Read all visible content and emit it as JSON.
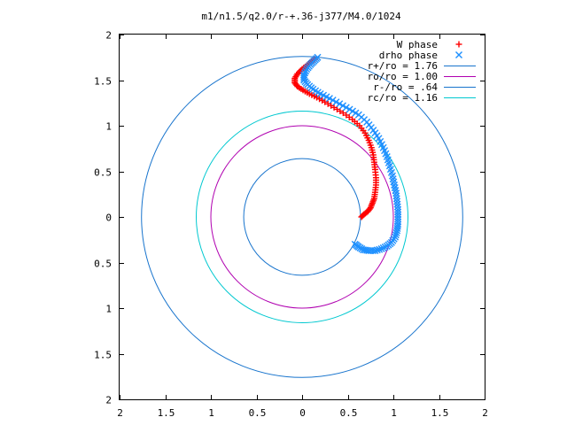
{
  "chart_data": {
    "type": "scatter",
    "title": "m1/n1.5/q2.0/r-+.36-j377/M4.0/1024",
    "xlim": [
      -2,
      2
    ],
    "ylim": [
      -2,
      2
    ],
    "x_ticks": [
      "2",
      "1.5",
      "1",
      "0.5",
      "0",
      "0.5",
      "1",
      "1.5",
      "2"
    ],
    "y_ticks": [
      "2",
      "1.5",
      "1",
      "0.5",
      "0",
      "0.5",
      "1",
      "1.5",
      "2"
    ],
    "grid": false,
    "legend_position": "top-right",
    "series": [
      {
        "name": "W phase",
        "marker": "+",
        "color": "#ff0000",
        "points": [
          [
            0.65,
            0.0
          ],
          [
            0.68,
            0.03
          ],
          [
            0.72,
            0.06
          ],
          [
            0.75,
            0.1
          ],
          [
            0.77,
            0.15
          ],
          [
            0.79,
            0.2
          ],
          [
            0.8,
            0.27
          ],
          [
            0.81,
            0.35
          ],
          [
            0.81,
            0.43
          ],
          [
            0.8,
            0.52
          ],
          [
            0.79,
            0.6
          ],
          [
            0.78,
            0.68
          ],
          [
            0.76,
            0.76
          ],
          [
            0.73,
            0.84
          ],
          [
            0.69,
            0.92
          ],
          [
            0.63,
            1.0
          ],
          [
            0.55,
            1.07
          ],
          [
            0.45,
            1.14
          ],
          [
            0.35,
            1.2
          ],
          [
            0.25,
            1.26
          ],
          [
            0.16,
            1.31
          ],
          [
            0.08,
            1.35
          ],
          [
            0.01,
            1.39
          ],
          [
            -0.05,
            1.43
          ],
          [
            -0.08,
            1.47
          ],
          [
            -0.08,
            1.52
          ],
          [
            -0.05,
            1.57
          ],
          [
            0.0,
            1.62
          ],
          [
            0.05,
            1.66
          ],
          [
            0.1,
            1.7
          ],
          [
            0.14,
            1.73
          ]
        ]
      },
      {
        "name": "drho phase",
        "marker": "x",
        "color": "#1e90ff",
        "points": [
          [
            0.58,
            -0.3
          ],
          [
            0.62,
            -0.33
          ],
          [
            0.67,
            -0.36
          ],
          [
            0.73,
            -0.37
          ],
          [
            0.8,
            -0.37
          ],
          [
            0.87,
            -0.35
          ],
          [
            0.93,
            -0.32
          ],
          [
            0.98,
            -0.28
          ],
          [
            1.02,
            -0.22
          ],
          [
            1.04,
            -0.15
          ],
          [
            1.05,
            -0.08
          ],
          [
            1.05,
            0.0
          ],
          [
            1.05,
            0.08
          ],
          [
            1.04,
            0.17
          ],
          [
            1.03,
            0.26
          ],
          [
            1.01,
            0.35
          ],
          [
            0.99,
            0.45
          ],
          [
            0.96,
            0.56
          ],
          [
            0.93,
            0.66
          ],
          [
            0.89,
            0.76
          ],
          [
            0.84,
            0.86
          ],
          [
            0.78,
            0.95
          ],
          [
            0.71,
            1.04
          ],
          [
            0.62,
            1.12
          ],
          [
            0.52,
            1.18
          ],
          [
            0.41,
            1.24
          ],
          [
            0.3,
            1.3
          ],
          [
            0.2,
            1.35
          ],
          [
            0.12,
            1.4
          ],
          [
            0.06,
            1.45
          ],
          [
            0.02,
            1.5
          ],
          [
            0.02,
            1.56
          ],
          [
            0.05,
            1.62
          ],
          [
            0.09,
            1.67
          ],
          [
            0.13,
            1.71
          ],
          [
            0.17,
            1.75
          ]
        ]
      },
      {
        "name": "r+/ro = 1.76",
        "type": "circle",
        "radius": 1.76,
        "color": "#1874cd"
      },
      {
        "name": "ro/ro = 1.00",
        "type": "circle",
        "radius": 1.0,
        "color": "#b000b0"
      },
      {
        "name": "r-/ro = .64",
        "type": "circle",
        "radius": 0.64,
        "color": "#1874cd"
      },
      {
        "name": "rc/ro = 1.16",
        "type": "circle",
        "radius": 1.16,
        "color": "#00c8d0"
      }
    ]
  }
}
